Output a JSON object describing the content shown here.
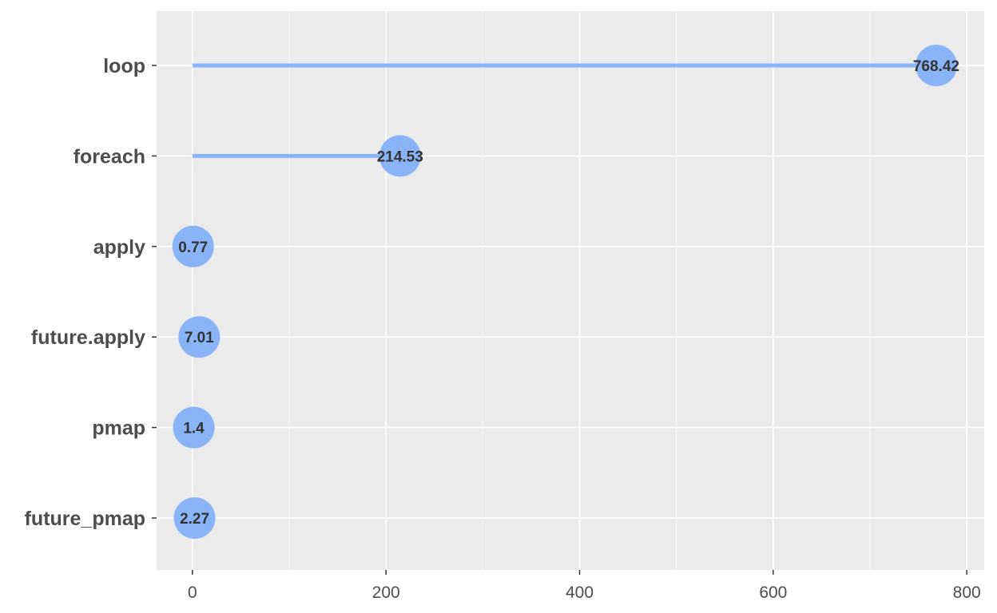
{
  "chart_data": {
    "type": "lollipop",
    "title": "",
    "xlabel": "",
    "ylabel": "",
    "categories": [
      "loop",
      "foreach",
      "apply",
      "future.apply",
      "pmap",
      "future_pmap"
    ],
    "values": [
      768.42,
      214.53,
      0.77,
      7.01,
      1.4,
      2.27
    ],
    "data_labels": [
      "768.42",
      "214.53",
      "0.77",
      "7.01",
      "1.4",
      "2.27"
    ],
    "xlim": [
      -37,
      818
    ],
    "x_ticks": [
      0,
      200,
      400,
      600,
      800
    ],
    "x_tick_labels": [
      "0",
      "200",
      "400",
      "600",
      "800"
    ],
    "grid": true,
    "legend": "none",
    "colors": {
      "point": "#8ab4f8",
      "stem": "#8ab4f8",
      "panel_bg": "#ebebeb",
      "grid": "#ffffff",
      "text": "#4d4d4d",
      "label_text": "#333333"
    }
  }
}
